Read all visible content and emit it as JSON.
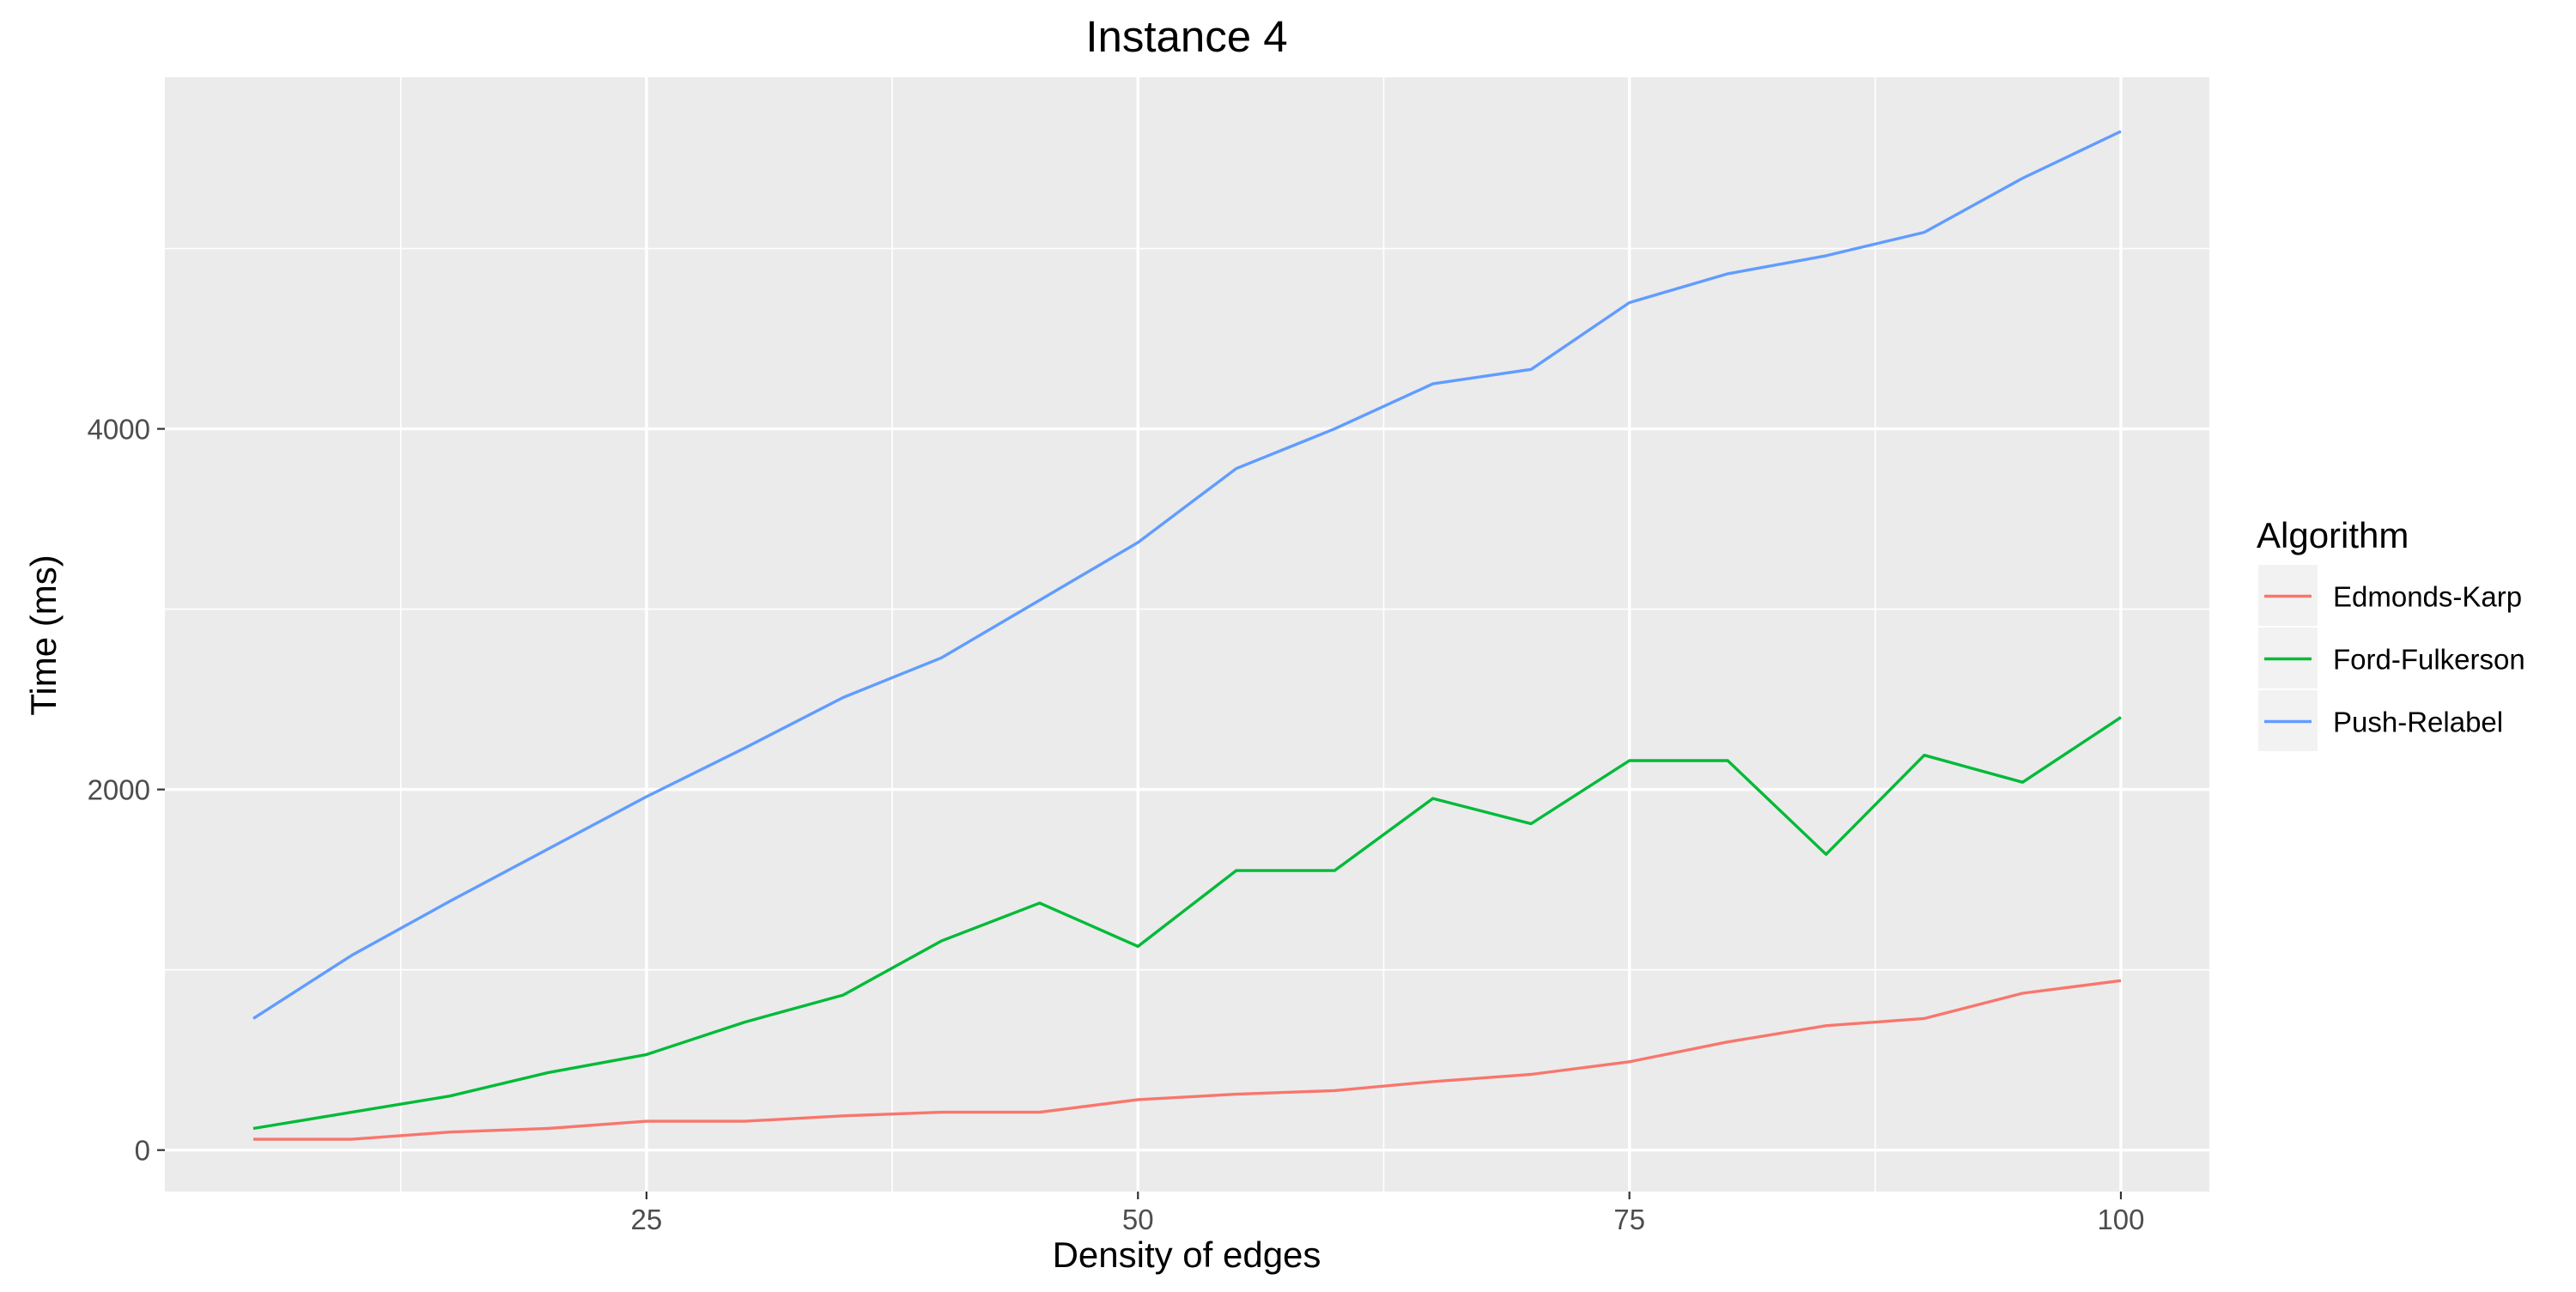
{
  "chart_data": {
    "type": "line",
    "title": "Instance 4",
    "xlabel": "Density of edges",
    "ylabel": "Time (ms)",
    "xlim": [
      0.5,
      104.5
    ],
    "ylim": [
      -230,
      5950
    ],
    "x_ticks": [
      25,
      50,
      75,
      100
    ],
    "x_tick_labels": [
      "25",
      "50",
      "75",
      "100"
    ],
    "y_ticks": [
      0,
      2000,
      4000
    ],
    "y_tick_labels": [
      "0",
      "2000",
      "4000"
    ],
    "x_minor_ticks": [
      12.5,
      37.5,
      62.5,
      87.5
    ],
    "y_minor_ticks": [
      1000,
      3000,
      5000
    ],
    "grid": true,
    "legend": {
      "title": "Algorithm",
      "position": "right"
    },
    "x": [
      5,
      10,
      15,
      20,
      25,
      30,
      35,
      40,
      45,
      50,
      55,
      60,
      65,
      70,
      75,
      80,
      85,
      90,
      95,
      100
    ],
    "series": [
      {
        "name": "Edmonds-Karp",
        "color": "#f8766d",
        "values": [
          60,
          60,
          100,
          120,
          160,
          160,
          190,
          210,
          210,
          280,
          310,
          330,
          380,
          420,
          490,
          600,
          690,
          730,
          870,
          940
        ]
      },
      {
        "name": "Ford-Fulkerson",
        "color": "#00ba38",
        "values": [
          120,
          210,
          300,
          430,
          530,
          710,
          860,
          1160,
          1370,
          1130,
          1550,
          1550,
          1950,
          1810,
          2160,
          2160,
          1640,
          2190,
          2040,
          2400
        ]
      },
      {
        "name": "Push-Relabel",
        "color": "#619cff",
        "values": [
          730,
          1080,
          1380,
          1670,
          1960,
          2230,
          2510,
          2730,
          3050,
          3370,
          3780,
          4000,
          4250,
          4330,
          4700,
          4860,
          4960,
          5090,
          5390,
          5650
        ]
      }
    ]
  }
}
